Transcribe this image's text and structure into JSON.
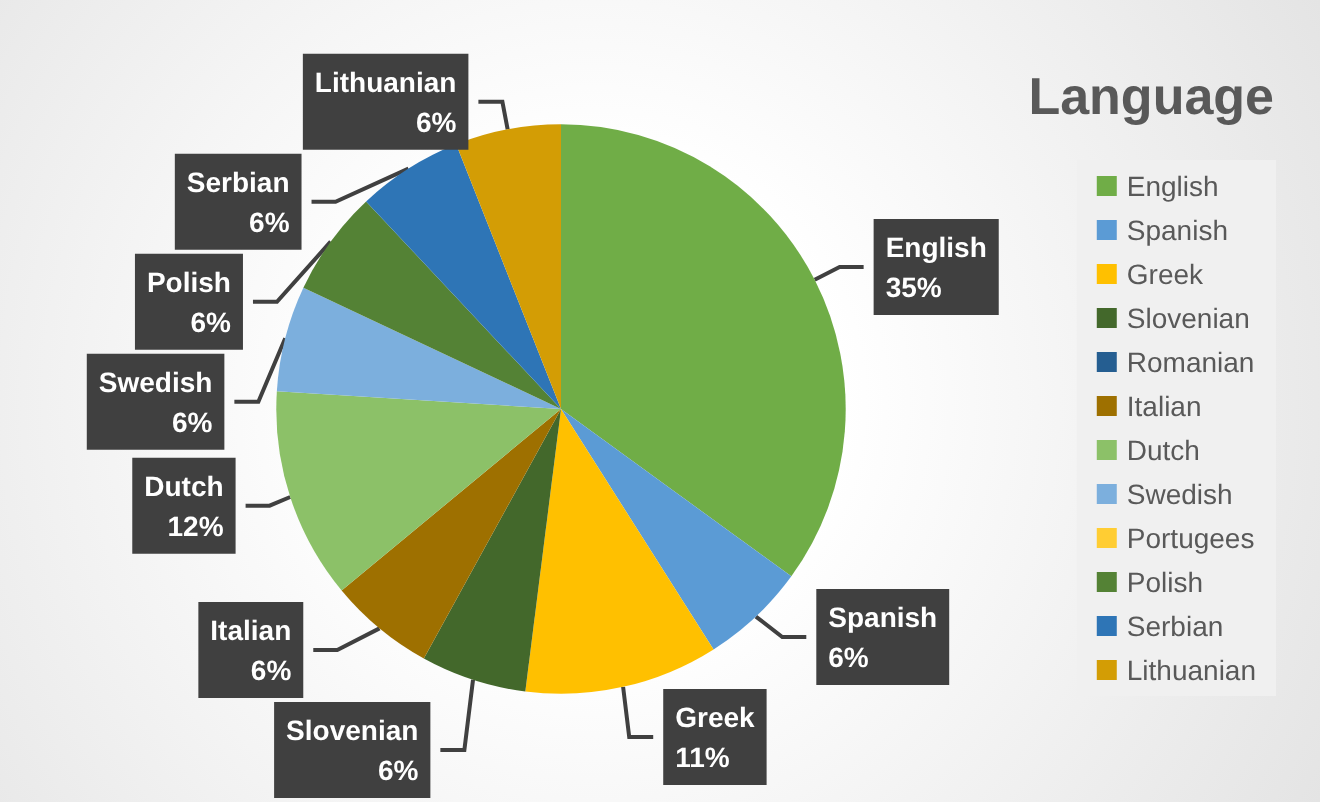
{
  "chart_data": {
    "type": "pie",
    "title": "Language",
    "categories": [
      "English",
      "Spanish",
      "Greek",
      "Slovenian",
      "Romanian",
      "Italian",
      "Dutch",
      "Swedish",
      "Portugees",
      "Polish",
      "Serbian",
      "Lithuanian"
    ],
    "values": [
      35,
      6,
      11,
      6,
      0,
      6,
      12,
      6,
      0,
      6,
      6,
      6
    ],
    "value_labels": [
      "35%",
      "6%",
      "11%",
      "6%",
      null,
      "6%",
      "12%",
      "6%",
      null,
      "6%",
      "6%",
      "6%"
    ],
    "colors": [
      "#70ad47",
      "#5b9bd5",
      "#ffc000",
      "#43682b",
      "#255e91",
      "#9e7000",
      "#8cc168",
      "#7cafdd",
      "#ffcd33",
      "#548235",
      "#2e75b6",
      "#d39d05"
    ],
    "legend": "right"
  }
}
